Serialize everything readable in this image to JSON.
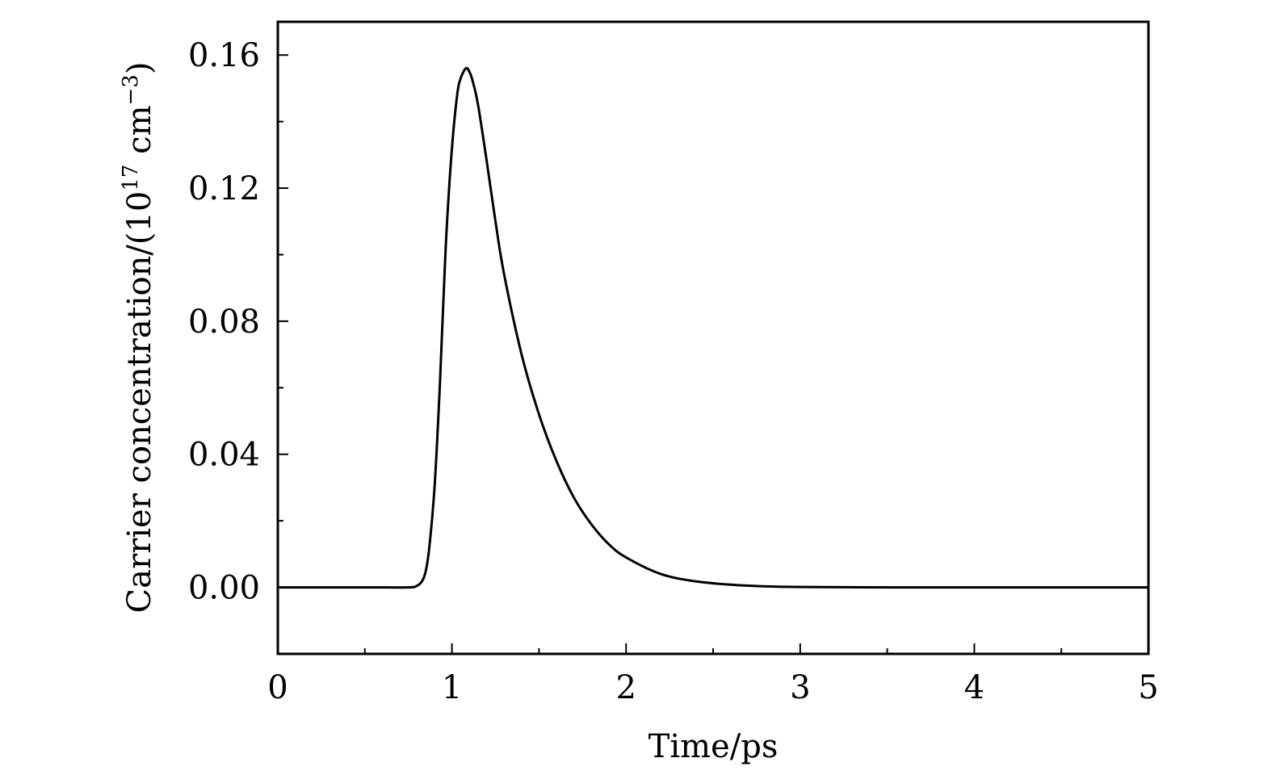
{
  "chart_data": {
    "type": "line",
    "title": "",
    "xlabel": "Time/ps",
    "ylabel": {
      "prefix": "Carrier concentration/(10",
      "exp1": "17",
      "mid": " cm",
      "exp2": "−3",
      "suffix": ")"
    },
    "xlim": [
      0,
      5
    ],
    "ylim": [
      -0.02,
      0.17
    ],
    "grid": false,
    "x_ticks": [
      0,
      1,
      2,
      3,
      4,
      5
    ],
    "x_tick_labels": [
      "0",
      "1",
      "2",
      "3",
      "4",
      "5"
    ],
    "x_minor_ticks": [
      0.5,
      1.5,
      2.5,
      3.5,
      4.5
    ],
    "y_ticks": [
      0,
      0.04,
      0.08,
      0.12,
      0.16
    ],
    "y_tick_labels": [
      "0.00",
      "0.04",
      "0.08",
      "0.12",
      "0.16"
    ],
    "y_minor_ticks": [
      -0.02,
      0.02,
      0.06,
      0.1,
      0.14
    ],
    "series": [
      {
        "color": "#000000",
        "x": [
          0,
          0.5,
          0.75,
          0.8,
          0.83,
          0.85,
          0.87,
          0.9,
          0.93,
          0.95,
          0.97,
          1.0,
          1.03,
          1.05,
          1.08,
          1.1,
          1.12,
          1.15,
          1.2,
          1.25,
          1.3,
          1.4,
          1.5,
          1.6,
          1.7,
          1.8,
          1.9,
          2.0,
          2.2,
          2.4,
          2.6,
          2.8,
          3.0,
          3.5,
          4.0,
          4.5,
          5.0
        ],
        "y": [
          0,
          0,
          0,
          0.0005,
          0.002,
          0.005,
          0.012,
          0.03,
          0.06,
          0.085,
          0.108,
          0.132,
          0.148,
          0.153,
          0.156,
          0.155,
          0.152,
          0.145,
          0.128,
          0.11,
          0.094,
          0.07,
          0.052,
          0.038,
          0.027,
          0.019,
          0.013,
          0.009,
          0.004,
          0.0018,
          0.0008,
          0.0003,
          0.0001,
          0,
          0,
          0,
          0
        ]
      }
    ]
  }
}
